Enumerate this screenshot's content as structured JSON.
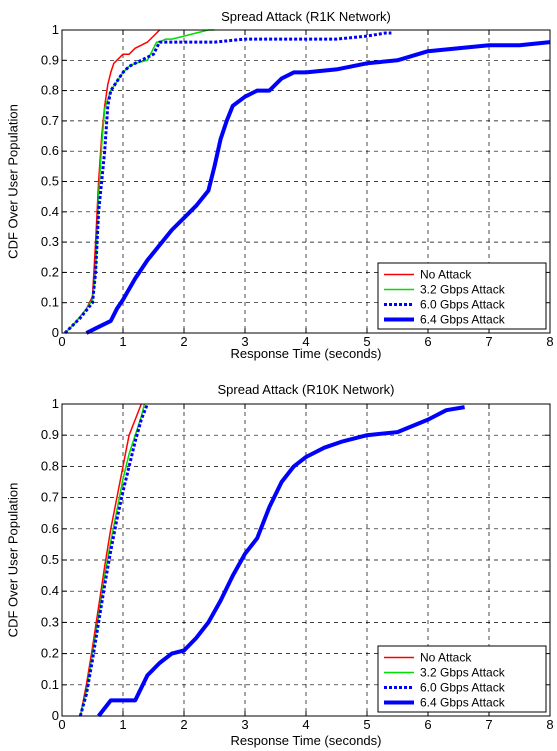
{
  "chart_data": [
    {
      "type": "line",
      "title": "Spread Attack (R1K Network)",
      "xlabel": "Response Time (seconds)",
      "ylabel": "CDF Over User Population",
      "xlim": [
        0,
        8
      ],
      "ylim": [
        0,
        1
      ],
      "xticks": [
        "0",
        "1",
        "2",
        "3",
        "4",
        "5",
        "6",
        "7",
        "8"
      ],
      "yticks": [
        "0",
        "0.1",
        "0.2",
        "0.3",
        "0.4",
        "0.5",
        "0.6",
        "0.7",
        "0.8",
        "0.9",
        "1"
      ],
      "grid": true,
      "legend_position": "bottom-right",
      "series": [
        {
          "name": "No Attack",
          "color": "#ff0000",
          "style": "solid",
          "width": 1.5,
          "x": [
            0.05,
            0.2,
            0.4,
            0.5,
            0.55,
            0.6,
            0.65,
            0.7,
            0.75,
            0.8,
            0.85,
            0.9,
            1.0,
            1.1,
            1.2,
            1.3,
            1.4,
            1.5,
            1.55,
            1.6
          ],
          "y": [
            0,
            0.03,
            0.08,
            0.12,
            0.3,
            0.5,
            0.65,
            0.75,
            0.82,
            0.86,
            0.89,
            0.9,
            0.92,
            0.92,
            0.94,
            0.95,
            0.96,
            0.98,
            0.99,
            1.0
          ]
        },
        {
          "name": "3.2 Gbps Attack",
          "color": "#00dd00",
          "style": "solid",
          "width": 1.5,
          "x": [
            0.05,
            0.2,
            0.4,
            0.5,
            0.55,
            0.6,
            0.65,
            0.7,
            0.8,
            0.9,
            1.0,
            1.1,
            1.2,
            1.4,
            1.5,
            1.55,
            1.6,
            1.7,
            1.8,
            2.0,
            2.2,
            2.4,
            2.5
          ],
          "y": [
            0,
            0.03,
            0.08,
            0.11,
            0.2,
            0.45,
            0.62,
            0.74,
            0.8,
            0.83,
            0.86,
            0.88,
            0.89,
            0.9,
            0.94,
            0.96,
            0.96,
            0.97,
            0.97,
            0.98,
            0.99,
            1.0,
            1.0
          ]
        },
        {
          "name": "6.0 Gbps Attack",
          "color": "#0000ff",
          "style": "dotted",
          "width": 3,
          "x": [
            0.05,
            0.3,
            0.5,
            0.55,
            0.6,
            0.7,
            0.75,
            0.8,
            0.9,
            1.0,
            1.1,
            1.2,
            1.3,
            1.4,
            1.5,
            1.6,
            2.0,
            2.5,
            3.0,
            3.5,
            4.0,
            4.5,
            5.0,
            5.3,
            5.4
          ],
          "y": [
            0,
            0.05,
            0.1,
            0.2,
            0.4,
            0.6,
            0.75,
            0.8,
            0.83,
            0.86,
            0.88,
            0.89,
            0.9,
            0.91,
            0.92,
            0.96,
            0.96,
            0.96,
            0.97,
            0.97,
            0.97,
            0.97,
            0.98,
            0.99,
            0.99
          ]
        },
        {
          "name": "6.4 Gbps Attack",
          "color": "#0000ff",
          "style": "solid",
          "width": 4,
          "x": [
            0.4,
            0.6,
            0.8,
            0.9,
            1.0,
            1.2,
            1.4,
            1.6,
            1.8,
            2.0,
            2.2,
            2.4,
            2.5,
            2.6,
            2.7,
            2.8,
            3.0,
            3.2,
            3.4,
            3.6,
            3.8,
            4.0,
            4.5,
            5.0,
            5.5,
            6.0,
            6.5,
            7.0,
            7.5,
            8.0
          ],
          "y": [
            0,
            0.02,
            0.04,
            0.08,
            0.11,
            0.18,
            0.24,
            0.29,
            0.34,
            0.38,
            0.42,
            0.47,
            0.55,
            0.64,
            0.7,
            0.75,
            0.78,
            0.8,
            0.8,
            0.84,
            0.86,
            0.86,
            0.87,
            0.89,
            0.9,
            0.93,
            0.94,
            0.95,
            0.95,
            0.96
          ]
        }
      ]
    },
    {
      "type": "line",
      "title": "Spread Attack (R10K Network)",
      "xlabel": "Response Time (seconds)",
      "ylabel": "CDF Over User Population",
      "xlim": [
        0,
        8
      ],
      "ylim": [
        0,
        1
      ],
      "xticks": [
        "0",
        "1",
        "2",
        "3",
        "4",
        "5",
        "6",
        "7",
        "8"
      ],
      "yticks": [
        "0",
        "0.1",
        "0.2",
        "0.3",
        "0.4",
        "0.5",
        "0.6",
        "0.7",
        "0.8",
        "0.9",
        "1"
      ],
      "grid": true,
      "legend_position": "bottom-right",
      "series": [
        {
          "name": "No Attack",
          "color": "#ff0000",
          "style": "solid",
          "width": 1.5,
          "x": [
            0.3,
            0.4,
            0.5,
            0.6,
            0.7,
            0.8,
            0.9,
            1.0,
            1.05,
            1.1,
            1.2,
            1.3
          ],
          "y": [
            0,
            0.1,
            0.22,
            0.35,
            0.48,
            0.6,
            0.7,
            0.8,
            0.85,
            0.9,
            0.95,
            1.0
          ]
        },
        {
          "name": "3.2 Gbps Attack",
          "color": "#00dd00",
          "style": "solid",
          "width": 1.5,
          "x": [
            0.3,
            0.4,
            0.5,
            0.6,
            0.7,
            0.8,
            0.9,
            1.0,
            1.1,
            1.2,
            1.3,
            1.35
          ],
          "y": [
            0,
            0.08,
            0.2,
            0.32,
            0.45,
            0.56,
            0.66,
            0.76,
            0.84,
            0.9,
            0.96,
            1.0
          ]
        },
        {
          "name": "6.0 Gbps Attack",
          "color": "#0000ff",
          "style": "dotted",
          "width": 3,
          "x": [
            0.3,
            0.4,
            0.5,
            0.6,
            0.7,
            0.8,
            0.9,
            1.0,
            1.1,
            1.2,
            1.3,
            1.4
          ],
          "y": [
            0,
            0.07,
            0.18,
            0.3,
            0.42,
            0.53,
            0.63,
            0.72,
            0.8,
            0.88,
            0.95,
            1.0
          ]
        },
        {
          "name": "6.4 Gbps Attack",
          "color": "#0000ff",
          "style": "solid",
          "width": 4,
          "x": [
            0.6,
            0.8,
            1.0,
            1.2,
            1.4,
            1.6,
            1.8,
            2.0,
            2.2,
            2.4,
            2.6,
            2.8,
            3.0,
            3.2,
            3.4,
            3.6,
            3.8,
            4.0,
            4.3,
            4.6,
            5.0,
            5.5,
            6.0,
            6.3,
            6.6
          ],
          "y": [
            0,
            0.05,
            0.05,
            0.05,
            0.13,
            0.17,
            0.2,
            0.21,
            0.25,
            0.3,
            0.37,
            0.45,
            0.52,
            0.57,
            0.67,
            0.75,
            0.8,
            0.83,
            0.86,
            0.88,
            0.9,
            0.91,
            0.95,
            0.98,
            0.99
          ]
        }
      ]
    }
  ]
}
